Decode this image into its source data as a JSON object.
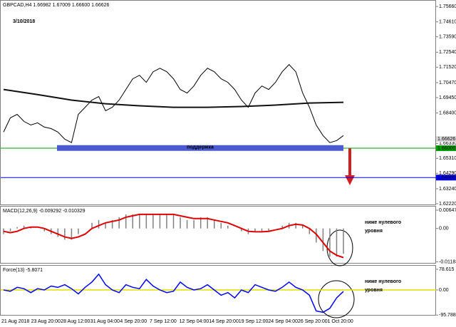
{
  "chart_data": [
    {
      "type": "line",
      "title": "GBPCAD,H4  1.66982 1.67009 1.66600 1.66626",
      "annotation": "3/10/2018",
      "support_label": "поддержка",
      "support_zone": [
        1.66,
        1.6621
      ],
      "ylim": [
        1.6212,
        1.7605
      ],
      "yticks": [
        {
          "value": 1.7566,
          "label": "1.75660"
        },
        {
          "value": 1.7461,
          "label": "1.74610"
        },
        {
          "value": 1.7359,
          "label": "1.73590"
        },
        {
          "value": 1.7254,
          "label": "1.72540"
        },
        {
          "value": 1.7152,
          "label": "1.71520"
        },
        {
          "value": 1.7047,
          "label": "1.70470"
        },
        {
          "value": 1.6945,
          "label": "1.69450"
        },
        {
          "value": 1.684,
          "label": "1.68400"
        },
        {
          "value": 1.6633,
          "label": "1.66330"
        },
        {
          "value": 1.6531,
          "label": "1.65310"
        },
        {
          "value": 1.6429,
          "label": "1.64290"
        },
        {
          "value": 1.6324,
          "label": "1.63240"
        },
        {
          "value": 1.6222,
          "label": "1.62220"
        }
      ],
      "levels": [
        {
          "value": 1.66,
          "label": "1.66000",
          "color": "#00a000"
        },
        {
          "value": 1.64,
          "label": "1.64000",
          "color": "#0000ff"
        }
      ],
      "current": {
        "value": 1.66626,
        "label": "1.66626"
      },
      "x_labels": [
        "21 Aug 2018",
        "23 Aug 20:00",
        "28 Aug 12:00",
        "31 Aug 04:00",
        "4 Sep 20:00",
        "7 Sep 12:00",
        "12 Sep 04:00",
        "14 Sep 20:00",
        "19 Sep 12:00",
        "24 Sep 04:00",
        "26 Sep 20:00",
        "1 Oct 20:00"
      ],
      "series": [
        {
          "color": "#000000",
          "width": 1,
          "values": [
            1.671,
            1.6807,
            1.6831,
            1.6783,
            1.6758,
            1.6773,
            1.6744,
            1.6734,
            1.671,
            1.6662,
            1.6638,
            1.6831,
            1.6879,
            1.6928,
            1.6952,
            1.6855,
            1.6879,
            1.6928,
            1.7,
            1.7073,
            1.7097,
            1.7049,
            1.7121,
            1.7145,
            1.7121,
            1.7073,
            1.7,
            1.6976,
            1.7024,
            1.7097,
            1.7145,
            1.7121,
            1.7073,
            1.7049,
            1.7,
            1.6928,
            1.6879,
            1.6976,
            1.7024,
            1.7,
            1.7049,
            1.7121,
            1.717,
            1.7121,
            1.6976,
            1.6879,
            1.6758,
            1.6686,
            1.6638,
            1.6652,
            1.6686
          ]
        },
        {
          "color": "#111111",
          "width": 2,
          "values": [
            1.7,
            1.6966,
            1.6928,
            1.6903,
            1.6889,
            1.6879,
            1.6879,
            1.6884,
            1.6894,
            1.6908,
            1.6913
          ]
        }
      ]
    },
    {
      "type": "macd",
      "title": "MACD(12,26,9) -0.009292 -0.010329",
      "annotation": [
        "ниже нулевого",
        "уровня"
      ],
      "ylim": [
        -0.01245,
        0.00775
      ],
      "yticks": [
        0.006476,
        {
          "value": 0,
          "label": "0.00"
        },
        -0.011839
      ],
      "histogram": {
        "color": "#808080",
        "values": [
          -0.002,
          -0.001,
          0.0005,
          0.001,
          0.0005,
          0,
          -0.001,
          -0.002,
          -0.003,
          -0.004,
          -0.004,
          -0.002,
          0,
          0.002,
          0.003,
          0.002,
          0.003,
          0.004,
          0.005,
          0.005,
          0.005,
          0.005,
          0.005,
          0.005,
          0.005,
          0.005,
          0.004,
          0.003,
          0.003,
          0.004,
          0.004,
          0.003,
          0.002,
          0.001,
          0,
          -0.001,
          -0.002,
          -0.001,
          -0.001,
          -0.001,
          0,
          0.001,
          0.002,
          0.002,
          0.001,
          -0.002,
          -0.005,
          -0.008,
          -0.01,
          -0.01,
          -0.009
        ]
      },
      "series": [
        {
          "color": "#e00000",
          "width": 2,
          "values": [
            -0.001,
            -0.0015,
            -0.001,
            0,
            0.0005,
            0.0005,
            0,
            -0.001,
            -0.002,
            -0.003,
            -0.0035,
            -0.003,
            -0.002,
            0,
            0.001,
            0.002,
            0.0025,
            0.003,
            0.004,
            0.0045,
            0.005,
            0.005,
            0.005,
            0.005,
            0.005,
            0.005,
            0.0045,
            0.004,
            0.0035,
            0.0035,
            0.0035,
            0.003,
            0.0025,
            0.002,
            0.001,
            0,
            -0.001,
            -0.0012,
            -0.0012,
            -0.001,
            -0.0005,
            0,
            0.001,
            0.0015,
            0.0012,
            0,
            -0.002,
            -0.005,
            -0.008,
            -0.0095,
            -0.0103
          ]
        }
      ]
    },
    {
      "type": "line",
      "title": "Force(13) -5.8071",
      "annotation": [
        "ниже нулевого",
        "уровня"
      ],
      "ylim": [
        -97.6,
        92.2
      ],
      "yticks": [
        78.615,
        {
          "value": 0,
          "label": "0.00"
        },
        -95.7881
      ],
      "zero_line": "#e0e000",
      "series": [
        {
          "color": "#0000ff",
          "width": 1.5,
          "values": [
            0,
            -5,
            10,
            5,
            -10,
            5,
            0,
            15,
            10,
            20,
            5,
            -15,
            10,
            30,
            60,
            20,
            0,
            -10,
            20,
            10,
            5,
            40,
            15,
            0,
            -10,
            -5,
            30,
            10,
            0,
            5,
            20,
            0,
            -20,
            -10,
            -30,
            0,
            -10,
            20,
            10,
            0,
            -5,
            10,
            30,
            10,
            0,
            -20,
            -80,
            -85,
            -70,
            -30,
            -5.8071
          ]
        }
      ]
    }
  ]
}
